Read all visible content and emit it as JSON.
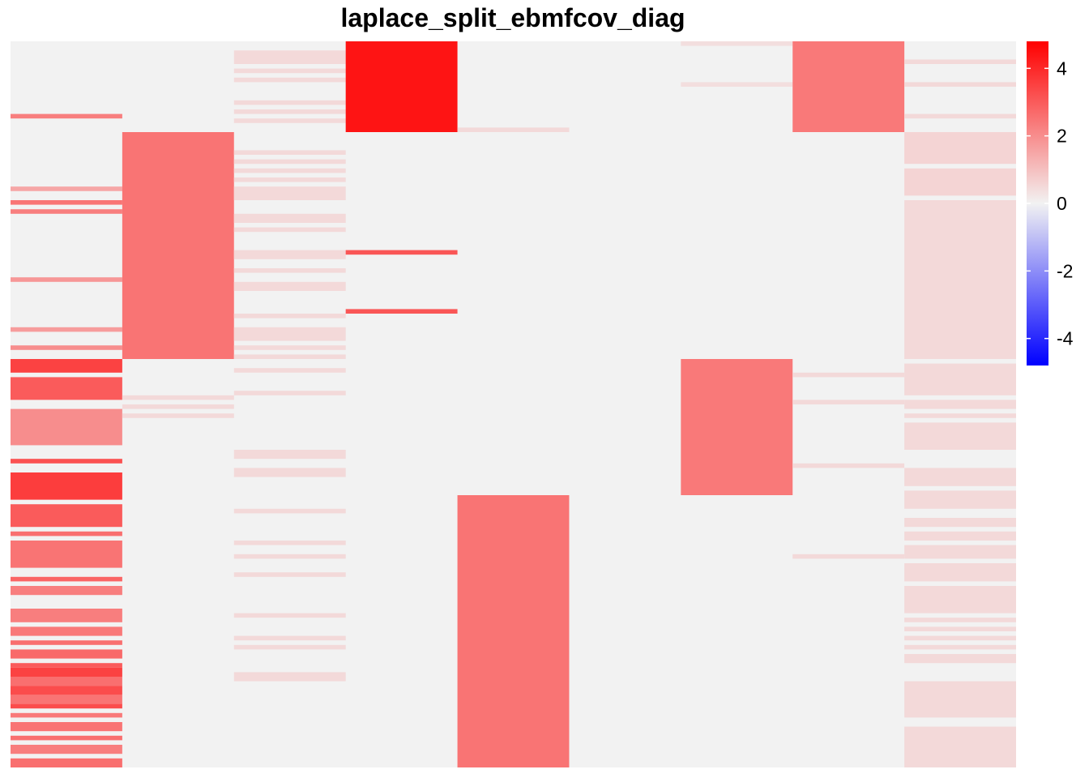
{
  "chart_data": {
    "type": "heatmap",
    "title": "laplace_split_ebmfcov_diag",
    "n_columns": 9,
    "n_rows": 160,
    "color_scale": {
      "min": -4.8,
      "max": 4.8,
      "colors": {
        "low": "#0000ff",
        "mid": "#f2f2f2",
        "high": "#ff0000"
      },
      "ticks": [
        {
          "value": 4,
          "label": "4"
        },
        {
          "value": 2,
          "label": "2"
        },
        {
          "value": 0,
          "label": "0"
        },
        {
          "value": -2,
          "label": "-2"
        },
        {
          "value": -4,
          "label": "-4"
        }
      ]
    },
    "background_value": 0,
    "columns": [
      {
        "segments": [
          [
            16,
            17,
            2.3
          ],
          [
            32,
            33,
            1.5
          ],
          [
            35,
            36,
            2.5
          ],
          [
            37,
            38,
            2.3
          ],
          [
            52,
            53,
            1.8
          ],
          [
            63,
            64,
            1.7
          ],
          [
            67,
            68,
            2.0
          ],
          [
            70,
            73,
            3.5
          ],
          [
            74,
            79,
            3.0
          ],
          [
            81,
            89,
            2.0
          ],
          [
            92,
            93,
            3.2
          ],
          [
            95,
            101,
            3.6
          ],
          [
            102,
            107,
            3.0
          ],
          [
            108,
            109,
            2.6
          ],
          [
            110,
            116,
            2.5
          ],
          [
            118,
            119,
            2.8
          ],
          [
            120,
            122,
            2.3
          ],
          [
            125,
            128,
            2.3
          ],
          [
            129,
            131,
            2.4
          ],
          [
            132,
            133,
            2.6
          ],
          [
            134,
            136,
            2.7
          ],
          [
            137,
            138,
            3.0
          ],
          [
            138,
            140,
            3.5
          ],
          [
            140,
            142,
            2.6
          ],
          [
            142,
            144,
            3.3
          ],
          [
            144,
            146,
            2.5
          ],
          [
            146,
            147,
            3.3
          ],
          [
            148,
            149,
            2.4
          ],
          [
            150,
            152,
            2.5
          ],
          [
            153,
            154,
            2.6
          ],
          [
            155,
            157,
            2.3
          ],
          [
            158,
            160,
            2.6
          ]
        ]
      },
      {
        "segments": [
          [
            20,
            70,
            2.5
          ],
          [
            78,
            79,
            0.5
          ],
          [
            80,
            81,
            0.5
          ],
          [
            82,
            83,
            0.5
          ]
        ]
      },
      {
        "segments": [
          [
            2,
            5,
            0.5
          ],
          [
            6,
            7,
            0.5
          ],
          [
            8,
            9,
            0.5
          ],
          [
            13,
            14,
            0.5
          ],
          [
            15,
            16,
            0.5
          ],
          [
            17,
            18,
            0.5
          ],
          [
            24,
            25,
            0.5
          ],
          [
            26,
            27,
            0.5
          ],
          [
            28,
            29,
            0.5
          ],
          [
            30,
            31,
            0.5
          ],
          [
            32,
            35,
            0.5
          ],
          [
            38,
            40,
            0.5
          ],
          [
            41,
            42,
            0.5
          ],
          [
            46,
            48,
            0.5
          ],
          [
            50,
            51,
            0.5
          ],
          [
            53,
            55,
            0.5
          ],
          [
            60,
            61,
            0.5
          ],
          [
            63,
            66,
            0.5
          ],
          [
            67,
            68,
            0.5
          ],
          [
            69,
            70,
            0.5
          ],
          [
            72,
            73,
            0.5
          ],
          [
            77,
            78,
            0.5
          ],
          [
            90,
            92,
            0.5
          ],
          [
            94,
            96,
            0.5
          ],
          [
            103,
            104,
            0.5
          ],
          [
            110,
            111,
            0.5
          ],
          [
            113,
            114,
            0.5
          ],
          [
            117,
            118,
            0.5
          ],
          [
            126,
            127,
            0.5
          ],
          [
            131,
            132,
            0.5
          ],
          [
            133,
            134,
            0.5
          ],
          [
            139,
            141,
            0.5
          ]
        ]
      },
      {
        "segments": [
          [
            0,
            20,
            4.4
          ],
          [
            46,
            47,
            3.1
          ],
          [
            59,
            60,
            3.1
          ]
        ]
      },
      {
        "segments": [
          [
            19,
            20,
            0.5
          ],
          [
            100,
            160,
            2.5
          ]
        ]
      },
      {
        "segments": []
      },
      {
        "segments": [
          [
            0,
            1,
            0.4
          ],
          [
            9,
            10,
            0.4
          ],
          [
            70,
            100,
            2.4
          ]
        ]
      },
      {
        "segments": [
          [
            0,
            20,
            2.4
          ],
          [
            73,
            74,
            0.5
          ],
          [
            79,
            80,
            0.5
          ],
          [
            93,
            94,
            0.5
          ],
          [
            113,
            114,
            0.5
          ]
        ]
      },
      {
        "segments": [
          [
            4,
            5,
            0.5
          ],
          [
            9,
            10,
            0.5
          ],
          [
            16,
            17,
            0.5
          ],
          [
            20,
            27,
            0.6
          ],
          [
            28,
            34,
            0.6
          ],
          [
            35,
            70,
            0.5
          ],
          [
            71,
            78,
            0.5
          ],
          [
            79,
            81,
            0.5
          ],
          [
            82,
            83,
            0.5
          ],
          [
            84,
            90,
            0.5
          ],
          [
            94,
            98,
            0.5
          ],
          [
            99,
            103,
            0.5
          ],
          [
            105,
            107,
            0.5
          ],
          [
            108,
            110,
            0.5
          ],
          [
            111,
            114,
            0.5
          ],
          [
            115,
            119,
            0.5
          ],
          [
            120,
            126,
            0.5
          ],
          [
            127,
            128,
            0.5
          ],
          [
            129,
            130,
            0.5
          ],
          [
            131,
            132,
            0.5
          ],
          [
            133,
            134,
            0.5
          ],
          [
            135,
            137,
            0.5
          ],
          [
            141,
            149,
            0.5
          ],
          [
            151,
            160,
            0.5
          ]
        ]
      }
    ]
  }
}
